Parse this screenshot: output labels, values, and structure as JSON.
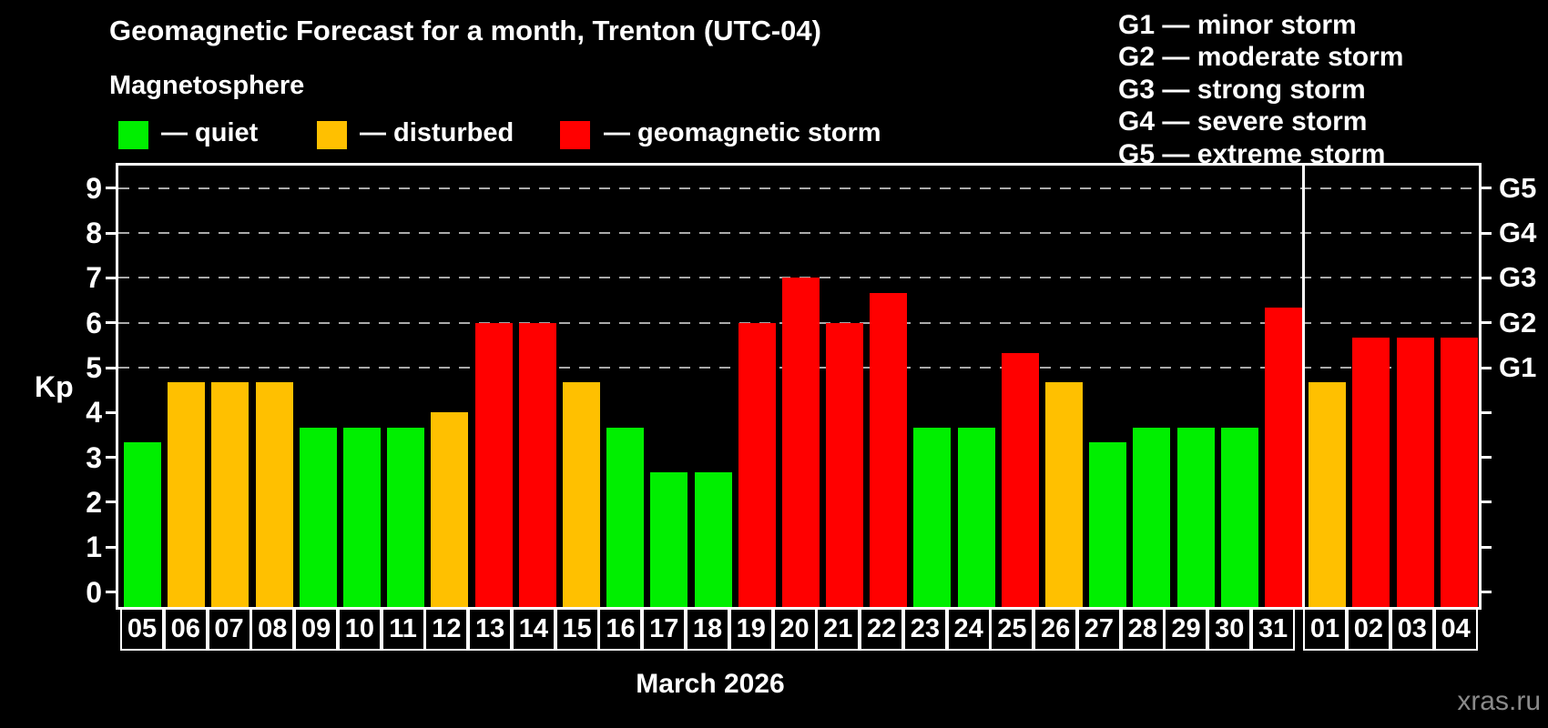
{
  "title": "Geomagnetic Forecast for a month, Trenton (UTC-04)",
  "subtitle": "Magnetosphere",
  "legend": {
    "items": [
      {
        "status": "quiet",
        "label": "— quiet",
        "color": "#00ef00"
      },
      {
        "status": "disturbed",
        "label": "— disturbed",
        "color": "#ffc000"
      },
      {
        "status": "storm",
        "label": "— geomagnetic storm",
        "color": "#ff0000"
      }
    ]
  },
  "g_legend": [
    "G1 — minor storm",
    "G2 — moderate storm",
    "G3 — strong storm",
    "G4 — severe storm",
    "G5 — extreme storm"
  ],
  "axes": {
    "y_label": "Kp",
    "y_ticks": [
      "0",
      "1",
      "2",
      "3",
      "4",
      "5",
      "6",
      "7",
      "8",
      "9"
    ],
    "right_axis": [
      {
        "label": "G1",
        "kp": 5
      },
      {
        "label": "G2",
        "kp": 6
      },
      {
        "label": "G3",
        "kp": 7
      },
      {
        "label": "G4",
        "kp": 8
      },
      {
        "label": "G5",
        "kp": 9
      }
    ],
    "x_axis_title": "March 2026"
  },
  "watermark": "xras.ru",
  "colors": {
    "background": "#000000",
    "quiet": "#00ef00",
    "disturbed": "#ffc000",
    "storm": "#ff0000",
    "gridline": "#aaaaaa",
    "axis": "#ffffff",
    "watermark_text": "#8a8a8a"
  },
  "chart_data": {
    "type": "bar",
    "title": "Geomagnetic Forecast for a month, Trenton (UTC-04)",
    "xlabel": "March 2026",
    "ylabel": "Kp",
    "ylim": [
      0,
      9.5
    ],
    "grid": "dashed horizontal at storm levels",
    "gridlines_at_kp": [
      5,
      6,
      7,
      8,
      9
    ],
    "right_axis_labels": {
      "G1": 5,
      "G2": 6,
      "G3": 7,
      "G4": 8,
      "G5": 9
    },
    "legend_position": "top-left",
    "month_boundary_after_index": 26,
    "days": [
      {
        "day": "05",
        "kp": 3.33,
        "status": "quiet"
      },
      {
        "day": "06",
        "kp": 4.67,
        "status": "disturbed"
      },
      {
        "day": "07",
        "kp": 4.67,
        "status": "disturbed"
      },
      {
        "day": "08",
        "kp": 4.67,
        "status": "disturbed"
      },
      {
        "day": "09",
        "kp": 3.67,
        "status": "quiet"
      },
      {
        "day": "10",
        "kp": 3.67,
        "status": "quiet"
      },
      {
        "day": "11",
        "kp": 3.67,
        "status": "quiet"
      },
      {
        "day": "12",
        "kp": 4.0,
        "status": "disturbed"
      },
      {
        "day": "13",
        "kp": 6.0,
        "status": "storm"
      },
      {
        "day": "14",
        "kp": 6.0,
        "status": "storm"
      },
      {
        "day": "15",
        "kp": 4.67,
        "status": "disturbed"
      },
      {
        "day": "16",
        "kp": 3.67,
        "status": "quiet"
      },
      {
        "day": "17",
        "kp": 2.67,
        "status": "quiet"
      },
      {
        "day": "18",
        "kp": 2.67,
        "status": "quiet"
      },
      {
        "day": "19",
        "kp": 6.0,
        "status": "storm"
      },
      {
        "day": "20",
        "kp": 7.0,
        "status": "storm"
      },
      {
        "day": "21",
        "kp": 6.0,
        "status": "storm"
      },
      {
        "day": "22",
        "kp": 6.67,
        "status": "storm"
      },
      {
        "day": "23",
        "kp": 3.67,
        "status": "quiet"
      },
      {
        "day": "24",
        "kp": 3.67,
        "status": "quiet"
      },
      {
        "day": "25",
        "kp": 5.33,
        "status": "storm"
      },
      {
        "day": "26",
        "kp": 4.67,
        "status": "disturbed"
      },
      {
        "day": "27",
        "kp": 3.33,
        "status": "quiet"
      },
      {
        "day": "28",
        "kp": 3.67,
        "status": "quiet"
      },
      {
        "day": "29",
        "kp": 3.67,
        "status": "quiet"
      },
      {
        "day": "30",
        "kp": 3.67,
        "status": "quiet"
      },
      {
        "day": "31",
        "kp": 6.33,
        "status": "storm"
      },
      {
        "day": "01",
        "kp": 4.67,
        "status": "disturbed",
        "month": "next"
      },
      {
        "day": "02",
        "kp": 5.67,
        "status": "storm",
        "month": "next"
      },
      {
        "day": "03",
        "kp": 5.67,
        "status": "storm",
        "month": "next"
      },
      {
        "day": "04",
        "kp": 5.67,
        "status": "storm",
        "month": "next"
      }
    ]
  }
}
